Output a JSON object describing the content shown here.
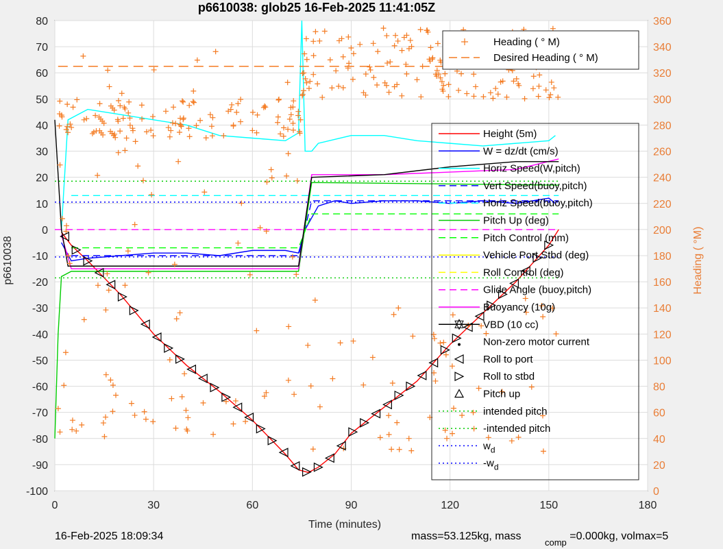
{
  "chart_data": {
    "type": "line",
    "title": "p6610038: glob25 16-Feb-2025 11:41:05Z",
    "xlabel": "Time (minutes)",
    "ylabel": "p6610038",
    "y2label": "Heading (  °M)",
    "xlim": [
      0,
      180
    ],
    "ylim": [
      -100,
      80
    ],
    "y2lim": [
      0,
      360
    ],
    "xticks": [
      0,
      30,
      60,
      90,
      120,
      150,
      180
    ],
    "yticks": [
      80,
      70,
      60,
      50,
      40,
      30,
      20,
      10,
      0,
      -10,
      -20,
      -30,
      -40,
      -50,
      -60,
      -70,
      -80,
      -90,
      -100
    ],
    "y2ticks": [
      360,
      340,
      320,
      300,
      280,
      260,
      240,
      220,
      200,
      180,
      160,
      140,
      120,
      100,
      80,
      60,
      40,
      20,
      0
    ],
    "grid": true,
    "legend_heading": [
      "Heading (  ° M)",
      "Desired Heading (    ° M)"
    ],
    "legend_main": [
      {
        "name": "Height (5m)",
        "color": "#ff0000",
        "style": "solid"
      },
      {
        "name": "W = dz/dt (cm/s)",
        "color": "#0000ff",
        "style": "solid"
      },
      {
        "name": "Horiz Speed(W,pitch)",
        "color": "#00ffff",
        "style": "solid"
      },
      {
        "name": "Vert Speed(buoy,pitch)",
        "color": "#0000ff",
        "style": "dash"
      },
      {
        "name": "Horiz Speed(buoy,pitch)",
        "color": "#00ffff",
        "style": "dash"
      },
      {
        "name": "Pitch Up (deg)",
        "color": "#00cc00",
        "style": "solid"
      },
      {
        "name": "Pitch Control (mm)",
        "color": "#00ff00",
        "style": "dash"
      },
      {
        "name": "Vehicle Port Stbd (deg)",
        "color": "#ffff00",
        "style": "solid"
      },
      {
        "name": "Roll Control (deg)",
        "color": "#ffff00",
        "style": "dash"
      },
      {
        "name": "Glide Angle (buoy,pitch)",
        "color": "#ff00ff",
        "style": "dash"
      },
      {
        "name": "Buoyancy (10g)",
        "color": "#ff00ff",
        "style": "solid"
      },
      {
        "name": "VBD (10 cc)",
        "color": "#000000",
        "style": "solid-hexagram"
      },
      {
        "name": "Non-zero motor current",
        "color": "#000000",
        "style": "dot"
      },
      {
        "name": "Roll to port",
        "color": "#000000",
        "style": "tri-left"
      },
      {
        "name": "Roll to stbd",
        "color": "#000000",
        "style": "tri-right"
      },
      {
        "name": "Pitch up",
        "color": "#000000",
        "style": "tri-up"
      },
      {
        "name": "intended pitch",
        "color": "#00cc00",
        "style": "dotted"
      },
      {
        "name": "-intended pitch",
        "color": "#00cc00",
        "style": "dotted"
      },
      {
        "name": "w_d",
        "color": "#0000ff",
        "style": "dotted"
      },
      {
        "name": "-w_d",
        "color": "#0000ff",
        "style": "dotted"
      }
    ],
    "series": [
      {
        "name": "Height (5m)",
        "color": "#ff0000",
        "x": [
          2,
          5,
          10,
          20,
          30,
          40,
          50,
          60,
          70,
          74,
          77,
          80,
          85,
          90,
          100,
          110,
          120,
          130,
          140,
          150,
          153
        ],
        "y": [
          -1,
          -6,
          -12,
          -25,
          -40,
          -52,
          -62,
          -73,
          -86,
          -92,
          -93,
          -91,
          -86,
          -78,
          -68,
          -58,
          -44,
          -32,
          -20,
          -6,
          0
        ]
      },
      {
        "name": "W = dz/dt (cm/s)",
        "color": "#0000ff",
        "x": [
          2,
          5,
          10,
          20,
          30,
          40,
          50,
          60,
          70,
          74,
          76,
          80,
          85,
          90,
          100,
          110,
          120,
          130,
          140,
          150,
          152
        ],
        "y": [
          -5,
          -12,
          -11,
          -10,
          -9,
          -9,
          -10,
          -8,
          -8,
          -9,
          0,
          9,
          11,
          10,
          11,
          11,
          10,
          11,
          10,
          12,
          10
        ]
      },
      {
        "name": "Horiz Speed(W,pitch)",
        "color": "#00ffff",
        "x": [
          2,
          4,
          10,
          20,
          30,
          40,
          50,
          60,
          70,
          74,
          75,
          76,
          78,
          80,
          90,
          100,
          110,
          120,
          130,
          140,
          150,
          152
        ],
        "y": [
          0,
          42,
          46,
          44,
          42,
          40,
          36,
          35,
          34,
          37,
          80,
          30,
          30,
          33,
          36,
          36,
          34,
          33,
          32,
          33,
          34,
          36
        ]
      },
      {
        "name": "Vert Speed(buoy,pitch)",
        "color": "#0000ff",
        "x": [
          5,
          74,
          78,
          153
        ],
        "y": [
          -10,
          -10,
          11,
          11
        ]
      },
      {
        "name": "Horiz Speed(buoy,pitch)",
        "color": "#00ffff",
        "x": [
          5,
          74,
          78,
          153
        ],
        "y": [
          13,
          13,
          13,
          13
        ]
      },
      {
        "name": "Pitch Up (deg)",
        "color": "#00cc00",
        "x": [
          0,
          1,
          2,
          5,
          74,
          78,
          153
        ],
        "y": [
          -80,
          -40,
          -18,
          -16,
          -16,
          18,
          17
        ]
      },
      {
        "name": "Pitch Control (mm)",
        "color": "#00ff00",
        "x": [
          5,
          74,
          78,
          153
        ],
        "y": [
          -7,
          -7,
          6,
          6
        ]
      },
      {
        "name": "Glide Angle (buoy,pitch)",
        "color": "#ff00ff",
        "x": [
          0,
          153
        ],
        "y": [
          0,
          0
        ]
      },
      {
        "name": "Buoyancy (10g)",
        "color": "#ff00ff",
        "x": [
          2,
          5,
          74,
          78,
          100,
          140,
          153
        ],
        "y": [
          -2,
          -15,
          -15,
          21,
          21,
          23,
          27
        ]
      },
      {
        "name": "VBD (10 cc)",
        "color": "#000000",
        "x": [
          0,
          2,
          4,
          74,
          78,
          100,
          120,
          140,
          153
        ],
        "y": [
          42,
          0,
          -14,
          -14,
          20,
          21,
          24,
          26,
          26
        ]
      },
      {
        "name": "intended pitch",
        "color": "#00cc00",
        "x": [
          0,
          153
        ],
        "y": [
          18.5,
          18.5
        ]
      },
      {
        "name": "-intended pitch",
        "color": "#00cc00",
        "x": [
          0,
          153
        ],
        "y": [
          -18.5,
          -18.5
        ]
      },
      {
        "name": "w_d",
        "color": "#0000ff",
        "x": [
          0,
          153
        ],
        "y": [
          10.5,
          10.5
        ]
      },
      {
        "name": "-w_d",
        "color": "#0000ff",
        "x": [
          0,
          153
        ],
        "y": [
          -10.5,
          -10.5
        ]
      }
    ],
    "heading_desired_deg": 325,
    "footer_left": "16-Feb-2025 18:09:34",
    "footer_right": "mass=53.125kg, mass",
    "footer_sub": "comp",
    "footer_right2": "=0.000kg, volmax=5"
  }
}
